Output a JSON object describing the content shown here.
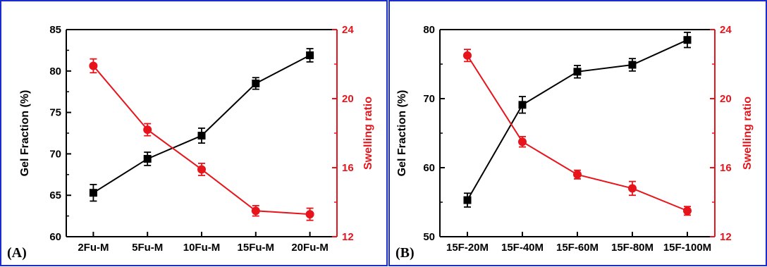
{
  "chart_data": [
    {
      "type": "line",
      "panel_label": "(A)",
      "categories": [
        "2Fu-M",
        "5Fu-M",
        "10Fu-M",
        "15Fu-M",
        "20Fu-M"
      ],
      "ylabel": "Gel Fraction (%)",
      "y2label": "Swelling ratio",
      "ylim": [
        60,
        85
      ],
      "yticks": [
        60,
        65,
        70,
        75,
        80,
        85
      ],
      "y2lim": [
        12,
        24
      ],
      "y2ticks": [
        12,
        16,
        20,
        24
      ],
      "series": [
        {
          "axis": "left",
          "color": "#000000",
          "marker": "square",
          "values": [
            65.3,
            69.4,
            72.2,
            78.5,
            81.9
          ],
          "errors": [
            1.0,
            0.8,
            0.9,
            0.7,
            0.8
          ]
        },
        {
          "axis": "right",
          "color": "#e8141b",
          "marker": "circle",
          "values": [
            21.9,
            18.2,
            15.9,
            13.5,
            13.3
          ],
          "errors": [
            0.4,
            0.35,
            0.35,
            0.3,
            0.35
          ]
        }
      ]
    },
    {
      "type": "line",
      "panel_label": "(B)",
      "categories": [
        "15F-20M",
        "15F-40M",
        "15F-60M",
        "15F-80M",
        "15F-100M"
      ],
      "ylabel": "Gel Fraction (%)",
      "y2label": "Swelling ratio",
      "ylim": [
        50,
        80
      ],
      "yticks": [
        50,
        60,
        70,
        80
      ],
      "y2lim": [
        12,
        24
      ],
      "y2ticks": [
        12,
        16,
        20,
        24
      ],
      "series": [
        {
          "axis": "left",
          "color": "#000000",
          "marker": "square",
          "values": [
            55.3,
            69.1,
            73.9,
            74.9,
            78.5
          ],
          "errors": [
            1.0,
            1.2,
            0.9,
            0.9,
            1.1
          ]
        },
        {
          "axis": "right",
          "color": "#e8141b",
          "marker": "circle",
          "values": [
            22.5,
            17.5,
            15.6,
            14.8,
            13.5
          ],
          "errors": [
            0.35,
            0.3,
            0.25,
            0.4,
            0.25
          ]
        }
      ]
    }
  ]
}
